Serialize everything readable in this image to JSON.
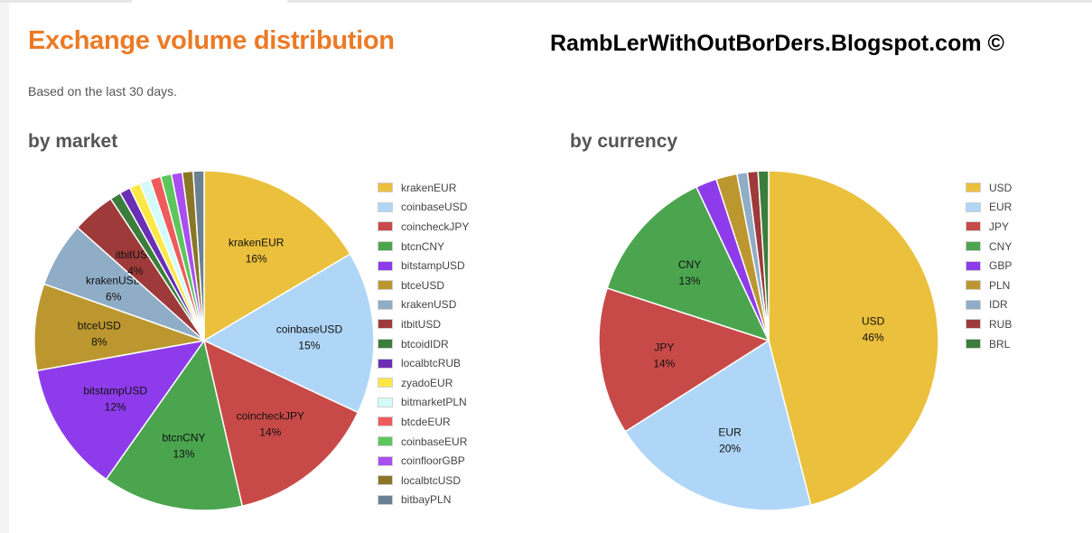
{
  "page": {
    "title": "Exchange volume distribution",
    "watermark": "RambLerWithOutBorDers.Blogspot.com ©",
    "subtitle": "Based on the last 30 days."
  },
  "sections": {
    "market": "by market",
    "currency": "by currency"
  },
  "chart_data": [
    {
      "type": "pie",
      "title": "by market",
      "legend_position": "right",
      "series": [
        {
          "slices": [
            {
              "label": "krakenEUR",
              "value": 16,
              "pct_label": "16%",
              "color": "#ebc03c"
            },
            {
              "label": "coinbaseUSD",
              "value": 15,
              "pct_label": "15%",
              "color": "#afd6f7"
            },
            {
              "label": "coincheckJPY",
              "value": 14,
              "pct_label": "14%",
              "color": "#c84a48"
            },
            {
              "label": "btcnCNY",
              "value": 13,
              "pct_label": "13%",
              "color": "#4ba54f"
            },
            {
              "label": "bitstampUSD",
              "value": 12,
              "pct_label": "12%",
              "color": "#8e3ceb"
            },
            {
              "label": "btceUSD",
              "value": 8,
              "pct_label": "8%",
              "color": "#bc972f"
            },
            {
              "label": "krakenUSD",
              "value": 6,
              "pct_label": "6%",
              "color": "#8fadc6"
            },
            {
              "label": "itbitUSD",
              "value": 4,
              "pct_label": "4%",
              "color": "#9e3a3a"
            },
            {
              "label": "btcoidIDR",
              "value": 1,
              "pct_label": "",
              "color": "#3b7e3b"
            },
            {
              "label": "localbtcRUB",
              "value": 1,
              "pct_label": "",
              "color": "#6a2fb4"
            },
            {
              "label": "zyadoEUR",
              "value": 1,
              "pct_label": "",
              "color": "#fce845"
            },
            {
              "label": "bitmarketPLN",
              "value": 1,
              "pct_label": "",
              "color": "#d3fbfb"
            },
            {
              "label": "btcdeEUR",
              "value": 1,
              "pct_label": "",
              "color": "#ef5b5b"
            },
            {
              "label": "coinbaseEUR",
              "value": 1,
              "pct_label": "",
              "color": "#5cc65c"
            },
            {
              "label": "coinfloorGBP",
              "value": 1,
              "pct_label": "",
              "color": "#a94ef0"
            },
            {
              "label": "localbtcUSD",
              "value": 1,
              "pct_label": "",
              "color": "#8a7627"
            },
            {
              "label": "bitbayPLN",
              "value": 1,
              "pct_label": "",
              "color": "#6b8093"
            }
          ]
        }
      ]
    },
    {
      "type": "pie",
      "title": "by currency",
      "legend_position": "right",
      "series": [
        {
          "slices": [
            {
              "label": "USD",
              "value": 46,
              "pct_label": "46%",
              "color": "#ebc03c"
            },
            {
              "label": "EUR",
              "value": 20,
              "pct_label": "20%",
              "color": "#afd6f7"
            },
            {
              "label": "JPY",
              "value": 14,
              "pct_label": "14%",
              "color": "#c84a48"
            },
            {
              "label": "CNY",
              "value": 13,
              "pct_label": "13%",
              "color": "#4ba54f"
            },
            {
              "label": "GBP",
              "value": 2,
              "pct_label": "",
              "color": "#8e3ceb"
            },
            {
              "label": "PLN",
              "value": 2,
              "pct_label": "",
              "color": "#bc972f"
            },
            {
              "label": "IDR",
              "value": 1,
              "pct_label": "",
              "color": "#8fadc6"
            },
            {
              "label": "RUB",
              "value": 1,
              "pct_label": "",
              "color": "#9e3a3a"
            },
            {
              "label": "BRL",
              "value": 1,
              "pct_label": "",
              "color": "#3b7e3b"
            }
          ]
        }
      ]
    }
  ]
}
